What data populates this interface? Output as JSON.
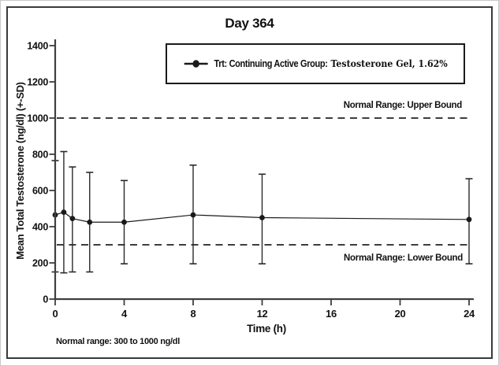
{
  "figure": {
    "title": "Day 364",
    "footnote": "Normal range: 300 to 1000 ng/dl"
  },
  "legend": {
    "marker_icon": "line-dot-marker",
    "label_prefix": "Trt: Continuing Active Group:",
    "label_product": "Testosterone Gel, 1.62%"
  },
  "annotations": {
    "upper_bound_label": "Normal Range: Upper Bound",
    "lower_bound_label": "Normal Range: Lower Bound"
  },
  "chart_data": {
    "type": "line",
    "title": "Day 364",
    "xlabel": "Time (h)",
    "ylabel": "Mean Total Testosterone (ng/dl) (+-SD)",
    "x": [
      0,
      0.5,
      1,
      2,
      4,
      8,
      12,
      24
    ],
    "series": [
      {
        "name": "Trt: Continuing Active Group: Testosterone Gel, 1.62%",
        "mean": [
          465,
          480,
          445,
          425,
          425,
          465,
          450,
          440
        ],
        "upper": [
          765,
          815,
          730,
          700,
          655,
          740,
          690,
          665
        ],
        "lower": [
          150,
          145,
          150,
          150,
          195,
          195,
          195,
          195
        ]
      }
    ],
    "reference_lines": [
      {
        "y": 1000,
        "label": "Normal Range: Upper Bound",
        "style": "dashed"
      },
      {
        "y": 300,
        "label": "Normal Range: Lower Bound",
        "style": "dashed"
      }
    ],
    "xticks": [
      0,
      4,
      8,
      12,
      16,
      20,
      24
    ],
    "yticks": [
      0,
      200,
      400,
      600,
      800,
      1000,
      1200,
      1400
    ],
    "xlim": [
      0,
      24
    ],
    "ylim": [
      0,
      1400
    ],
    "grid": false,
    "legend_position": "top-center",
    "colors": {
      "series": "#1a1a1a",
      "reference_line": "#222222",
      "axis": "#3f3f3f",
      "frame": "#3a3a3a",
      "background": "#ffffff"
    }
  }
}
